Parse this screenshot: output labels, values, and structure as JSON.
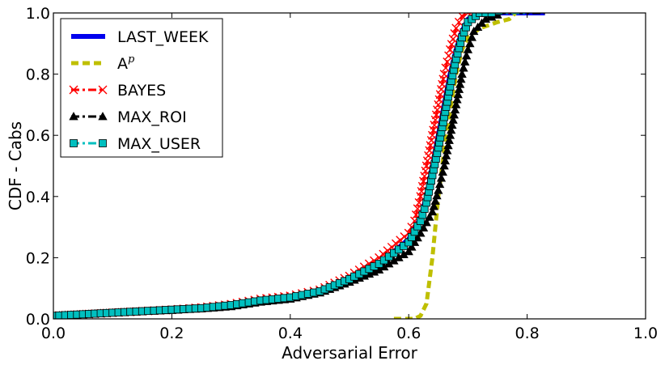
{
  "chart_data": {
    "type": "line",
    "title": "",
    "xlabel": "Adversarial Error",
    "ylabel": "CDF - Cabs",
    "xlim": [
      0.0,
      1.0
    ],
    "ylim": [
      0.0,
      1.0
    ],
    "x_ticks": [
      "0.0",
      "0.2",
      "0.4",
      "0.6",
      "0.8",
      "1.0"
    ],
    "y_ticks": [
      "0.0",
      "0.2",
      "0.4",
      "0.6",
      "0.8",
      "1.0"
    ],
    "grid": false,
    "legend_position": "top-left",
    "series": [
      {
        "name": "LAST_WEEK",
        "color": "#0000ee",
        "style": "solid",
        "marker": "none",
        "points": [
          [
            0.0,
            0.01
          ],
          [
            0.05,
            0.015
          ],
          [
            0.1,
            0.02
          ],
          [
            0.2,
            0.03
          ],
          [
            0.25,
            0.035
          ],
          [
            0.3,
            0.045
          ],
          [
            0.35,
            0.06
          ],
          [
            0.4,
            0.07
          ],
          [
            0.45,
            0.09
          ],
          [
            0.5,
            0.13
          ],
          [
            0.55,
            0.18
          ],
          [
            0.6,
            0.26
          ],
          [
            0.62,
            0.33
          ],
          [
            0.63,
            0.4
          ],
          [
            0.64,
            0.5
          ],
          [
            0.65,
            0.6
          ],
          [
            0.66,
            0.7
          ],
          [
            0.67,
            0.8
          ],
          [
            0.68,
            0.88
          ],
          [
            0.69,
            0.94
          ],
          [
            0.7,
            0.98
          ],
          [
            0.72,
            1.0
          ],
          [
            0.83,
            1.0
          ]
        ]
      },
      {
        "name": "A",
        "name_sup": "p",
        "color": "#bfbf00",
        "style": "dashed",
        "marker": "none",
        "points": [
          [
            0.575,
            0.0
          ],
          [
            0.61,
            0.0
          ],
          [
            0.62,
            0.01
          ],
          [
            0.63,
            0.05
          ],
          [
            0.64,
            0.2
          ],
          [
            0.65,
            0.4
          ],
          [
            0.66,
            0.55
          ],
          [
            0.67,
            0.68
          ],
          [
            0.68,
            0.8
          ],
          [
            0.69,
            0.88
          ],
          [
            0.7,
            0.92
          ],
          [
            0.72,
            0.95
          ],
          [
            0.75,
            0.97
          ],
          [
            0.77,
            0.98
          ],
          [
            0.78,
            1.0
          ]
        ]
      },
      {
        "name": "BAYES",
        "color": "#ff0000",
        "style": "dashdot",
        "marker": "x",
        "points": [
          [
            0.0,
            0.01
          ],
          [
            0.05,
            0.015
          ],
          [
            0.1,
            0.02
          ],
          [
            0.2,
            0.03
          ],
          [
            0.25,
            0.037
          ],
          [
            0.3,
            0.048
          ],
          [
            0.35,
            0.065
          ],
          [
            0.4,
            0.075
          ],
          [
            0.45,
            0.095
          ],
          [
            0.5,
            0.14
          ],
          [
            0.55,
            0.2
          ],
          [
            0.6,
            0.28
          ],
          [
            0.61,
            0.32
          ],
          [
            0.62,
            0.4
          ],
          [
            0.63,
            0.5
          ],
          [
            0.64,
            0.6
          ],
          [
            0.65,
            0.7
          ],
          [
            0.66,
            0.8
          ],
          [
            0.67,
            0.88
          ],
          [
            0.68,
            0.95
          ],
          [
            0.69,
            0.99
          ],
          [
            0.7,
            1.0
          ],
          [
            0.78,
            1.0
          ]
        ]
      },
      {
        "name": "MAX_ROI",
        "color": "#000000",
        "style": "dashdot",
        "marker": "triangle",
        "points": [
          [
            0.0,
            0.01
          ],
          [
            0.05,
            0.015
          ],
          [
            0.1,
            0.02
          ],
          [
            0.2,
            0.028
          ],
          [
            0.25,
            0.033
          ],
          [
            0.3,
            0.04
          ],
          [
            0.35,
            0.055
          ],
          [
            0.4,
            0.065
          ],
          [
            0.45,
            0.085
          ],
          [
            0.5,
            0.12
          ],
          [
            0.55,
            0.16
          ],
          [
            0.6,
            0.22
          ],
          [
            0.62,
            0.28
          ],
          [
            0.64,
            0.35
          ],
          [
            0.65,
            0.42
          ],
          [
            0.66,
            0.5
          ],
          [
            0.67,
            0.6
          ],
          [
            0.68,
            0.7
          ],
          [
            0.69,
            0.8
          ],
          [
            0.7,
            0.88
          ],
          [
            0.71,
            0.94
          ],
          [
            0.73,
            0.98
          ],
          [
            0.76,
            1.0
          ],
          [
            0.83,
            1.0
          ]
        ]
      },
      {
        "name": "MAX_USER",
        "color": "#00bfbf",
        "style": "dashdot",
        "marker": "square",
        "points": [
          [
            0.0,
            0.01
          ],
          [
            0.05,
            0.015
          ],
          [
            0.1,
            0.02
          ],
          [
            0.2,
            0.03
          ],
          [
            0.25,
            0.035
          ],
          [
            0.3,
            0.045
          ],
          [
            0.35,
            0.06
          ],
          [
            0.4,
            0.07
          ],
          [
            0.45,
            0.09
          ],
          [
            0.5,
            0.13
          ],
          [
            0.55,
            0.18
          ],
          [
            0.6,
            0.25
          ],
          [
            0.62,
            0.32
          ],
          [
            0.63,
            0.38
          ],
          [
            0.64,
            0.47
          ],
          [
            0.65,
            0.56
          ],
          [
            0.66,
            0.66
          ],
          [
            0.67,
            0.76
          ],
          [
            0.68,
            0.85
          ],
          [
            0.69,
            0.92
          ],
          [
            0.7,
            0.97
          ],
          [
            0.72,
            1.0
          ],
          [
            0.8,
            1.0
          ]
        ]
      }
    ]
  }
}
